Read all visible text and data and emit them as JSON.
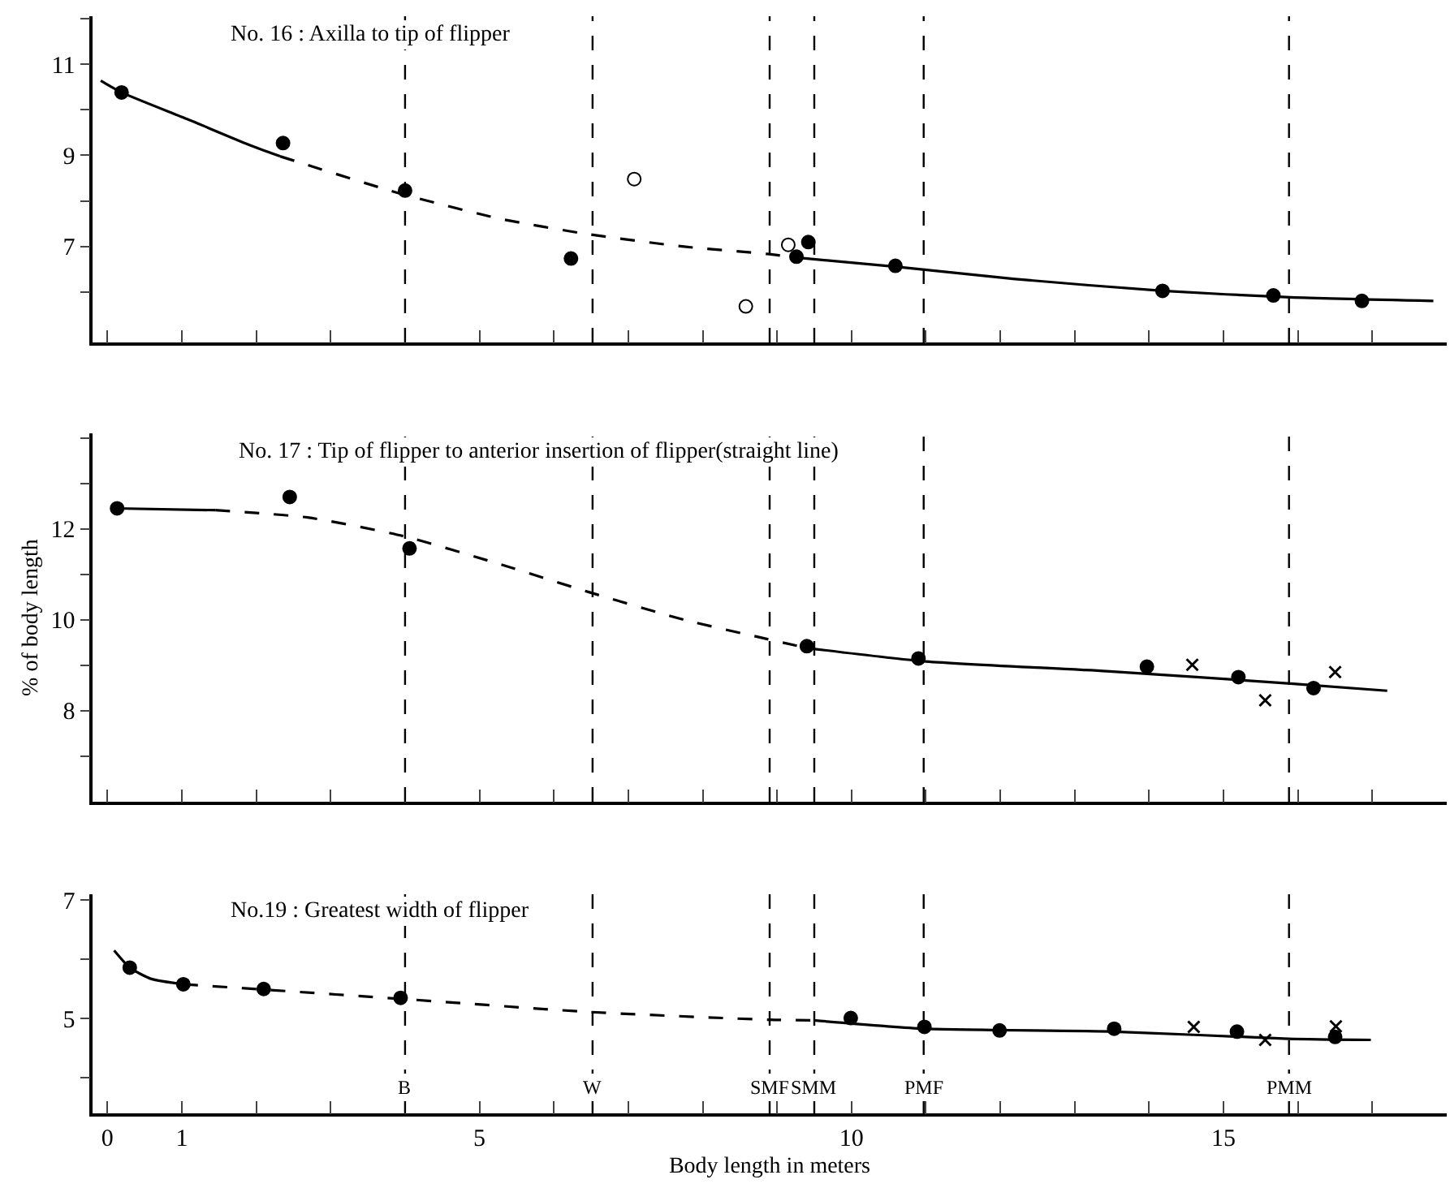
{
  "chart_data": [
    {
      "type": "scatter",
      "title": "No. 16 : Axilla to tip of flipper",
      "xlim": [
        -0.2,
        18
      ],
      "ylim": [
        4.9,
        12.05
      ],
      "tick_labels": "y",
      "xticks": [
        0,
        1,
        {
          "value": 2,
          "label": null
        },
        {
          "value": 3,
          "label": null
        },
        {
          "value": 4,
          "label": null
        },
        5,
        {
          "value": 6,
          "label": null
        },
        {
          "value": 7,
          "label": null
        },
        {
          "value": 8,
          "label": null
        },
        {
          "value": 9,
          "label": null
        },
        10,
        {
          "value": 11,
          "label": null
        },
        {
          "value": 12,
          "label": null
        },
        {
          "value": 13,
          "label": null
        },
        {
          "value": 14,
          "label": null
        },
        15,
        {
          "value": 16,
          "label": null
        },
        {
          "value": 17,
          "label": null
        },
        {
          "value": 18,
          "label": null
        }
      ],
      "yticks": [
        {
          "value": 6,
          "label": null
        },
        7,
        {
          "value": 8,
          "label": null
        },
        9,
        {
          "value": 10,
          "label": null
        },
        11,
        {
          "value": 12,
          "label": null
        }
      ],
      "series": [
        {
          "type": "line",
          "line_style": "solid",
          "marker": "none",
          "color": "#000000",
          "x": [
            -0.09,
            0.19,
            1.08,
            1.89,
            2.32
          ],
          "values": [
            10.64,
            10.38,
            9.79,
            9.24,
            8.98
          ]
        },
        {
          "type": "line",
          "line_style": "dashed",
          "marker": "none",
          "color": "#000000",
          "x": [
            2.32,
            3.92,
            5.28,
            6.47,
            7.75,
            8.86,
            9.26
          ],
          "values": [
            8.98,
            8.17,
            7.61,
            7.27,
            7.0,
            6.84,
            6.76
          ]
        },
        {
          "type": "line",
          "line_style": "solid",
          "marker": "none",
          "color": "#000000",
          "x": [
            9.26,
            10.59,
            12.2,
            14.18,
            15.9,
            17.82
          ],
          "values": [
            6.76,
            6.56,
            6.29,
            6.03,
            5.89,
            5.81
          ]
        },
        {
          "type": "scatter",
          "marker": "circle",
          "color": "#000000",
          "x": [
            0.19,
            2.36,
            4.0,
            6.23,
            9.42,
            9.26,
            10.59,
            14.18,
            15.67,
            16.86
          ],
          "values": [
            10.38,
            9.27,
            8.23,
            6.74,
            7.1,
            6.78,
            6.58,
            6.03,
            5.93,
            5.81
          ]
        },
        {
          "type": "scatter",
          "marker": "circle",
          "color": "#ffffff",
          "x": [
            7.08,
            8.58,
            9.15
          ],
          "values": [
            8.48,
            5.69,
            7.04
          ]
        }
      ],
      "ref_lines": [
        {
          "axis": "x",
          "value": 4.0,
          "line_style": "dashed",
          "color": "#000000"
        },
        {
          "axis": "x",
          "value": 6.52,
          "line_style": "dashed",
          "color": "#000000"
        },
        {
          "axis": "x",
          "value": 8.9,
          "line_style": "dashed",
          "color": "#000000"
        },
        {
          "axis": "x",
          "value": 9.5,
          "line_style": "dashed",
          "color": "#000000"
        },
        {
          "axis": "x",
          "value": 10.97,
          "line_style": "dashed",
          "color": "#000000"
        },
        {
          "axis": "x",
          "value": 15.88,
          "line_style": "dashed",
          "color": "#000000"
        }
      ]
    },
    {
      "type": "scatter",
      "title": "No. 17 : Tip of flipper to anterior insertion of flipper(straight line)",
      "ylabel": "% of body length",
      "xlim": [
        -0.2,
        18
      ],
      "ylim": [
        6,
        14.1
      ],
      "tick_labels": "y",
      "xticks": [
        0,
        1,
        {
          "value": 2,
          "label": null
        },
        {
          "value": 3,
          "label": null
        },
        {
          "value": 4,
          "label": null
        },
        5,
        {
          "value": 6,
          "label": null
        },
        {
          "value": 7,
          "label": null
        },
        {
          "value": 8,
          "label": null
        },
        {
          "value": 9,
          "label": null
        },
        10,
        {
          "value": 11,
          "label": null
        },
        {
          "value": 12,
          "label": null
        },
        {
          "value": 13,
          "label": null
        },
        {
          "value": 14,
          "label": null
        },
        15,
        {
          "value": 16,
          "label": null
        },
        {
          "value": 17,
          "label": null
        },
        {
          "value": 18,
          "label": null
        }
      ],
      "yticks": [
        {
          "value": 7,
          "label": null
        },
        8,
        {
          "value": 9,
          "label": null
        },
        10,
        {
          "value": 11,
          "label": null
        },
        12,
        {
          "value": 13,
          "label": null
        },
        {
          "value": 14,
          "label": null
        }
      ],
      "series": [
        {
          "type": "line",
          "line_style": "solid",
          "marker": "none",
          "color": "#000000",
          "x": [
            0.13,
            1.45
          ],
          "values": [
            12.45,
            12.41
          ]
        },
        {
          "type": "line",
          "line_style": "dashed",
          "marker": "none",
          "color": "#000000",
          "x": [
            1.45,
            2.69,
            3.98,
            5.28,
            6.47,
            7.75,
            8.86,
            9.4
          ],
          "values": [
            12.41,
            12.25,
            11.84,
            11.22,
            10.61,
            10.0,
            9.58,
            9.38
          ]
        },
        {
          "type": "line",
          "line_style": "solid",
          "marker": "none",
          "color": "#000000",
          "x": [
            9.4,
            10.96,
            13.43,
            15.9,
            17.2
          ],
          "values": [
            9.38,
            9.09,
            8.87,
            8.6,
            8.44
          ]
        },
        {
          "type": "scatter",
          "marker": "circle",
          "color": "#000000",
          "x": [
            0.13,
            2.45,
            4.06,
            9.4,
            10.9,
            13.97,
            15.2,
            16.21
          ],
          "values": [
            12.45,
            12.7,
            11.57,
            9.42,
            9.15,
            8.97,
            8.74,
            8.5
          ]
        },
        {
          "type": "scatter",
          "marker": "cross",
          "color": "#000000",
          "x": [
            14.58,
            15.56,
            16.5
          ],
          "values": [
            9.01,
            8.23,
            8.85
          ]
        }
      ],
      "ref_lines": [
        {
          "axis": "x",
          "value": 4.0,
          "line_style": "dashed",
          "color": "#000000"
        },
        {
          "axis": "x",
          "value": 6.52,
          "line_style": "dashed",
          "color": "#000000"
        },
        {
          "axis": "x",
          "value": 8.9,
          "line_style": "dashed",
          "color": "#000000"
        },
        {
          "axis": "x",
          "value": 9.5,
          "line_style": "dashed",
          "color": "#000000"
        },
        {
          "axis": "x",
          "value": 10.97,
          "line_style": "dashed",
          "color": "#000000"
        },
        {
          "axis": "x",
          "value": 15.88,
          "line_style": "dashed",
          "color": "#000000"
        }
      ]
    },
    {
      "type": "scatter",
      "title": "No.19 : Greatest width of flipper",
      "xlabel": "Body length in meters",
      "xlim": [
        -0.2,
        18
      ],
      "ylim": [
        3.4,
        7.1
      ],
      "xticks": [
        0,
        1,
        {
          "value": 2,
          "label": null
        },
        {
          "value": 3,
          "label": null
        },
        {
          "value": 4,
          "label": null
        },
        5,
        {
          "value": 6,
          "label": null
        },
        {
          "value": 7,
          "label": null
        },
        {
          "value": 8,
          "label": null
        },
        {
          "value": 9,
          "label": null
        },
        10,
        {
          "value": 11,
          "label": null
        },
        {
          "value": 12,
          "label": null
        },
        {
          "value": 13,
          "label": null
        },
        {
          "value": 14,
          "label": null
        },
        15,
        {
          "value": 16,
          "label": null
        },
        {
          "value": 17,
          "label": null
        },
        {
          "value": 18,
          "label": null
        }
      ],
      "yticks": [
        {
          "value": 4,
          "label": null
        },
        5,
        {
          "value": 6,
          "label": null
        },
        7
      ],
      "series": [
        {
          "type": "line",
          "line_style": "solid",
          "marker": "none",
          "color": "#000000",
          "x": [
            0.09,
            0.3,
            0.59,
            1.02
          ],
          "values": [
            6.15,
            5.86,
            5.67,
            5.58
          ]
        },
        {
          "type": "line",
          "line_style": "dashed",
          "marker": "none",
          "color": "#000000",
          "x": [
            1.02,
            2.1,
            3.98,
            6.5,
            8.91,
            9.5
          ],
          "values": [
            5.58,
            5.49,
            5.33,
            5.11,
            4.98,
            4.97
          ]
        },
        {
          "type": "line",
          "line_style": "solid",
          "marker": "none",
          "color": "#000000",
          "x": [
            9.5,
            10.98,
            13.53,
            15.87,
            16.98
          ],
          "values": [
            4.97,
            4.83,
            4.78,
            4.66,
            4.64
          ]
        },
        {
          "type": "scatter",
          "marker": "circle",
          "color": "#000000",
          "x": [
            0.3,
            1.02,
            2.1,
            3.94,
            9.99,
            10.98,
            11.99,
            13.53,
            15.18,
            16.5
          ],
          "values": [
            5.86,
            5.58,
            5.5,
            5.35,
            5.01,
            4.86,
            4.8,
            4.83,
            4.78,
            4.69
          ]
        },
        {
          "type": "scatter",
          "marker": "cross",
          "color": "#000000",
          "x": [
            14.6,
            15.56,
            16.51
          ],
          "values": [
            4.86,
            4.64,
            4.87
          ]
        }
      ],
      "ref_lines": [
        {
          "axis": "x",
          "value": 4.0,
          "label": "B",
          "line_style": "dashed",
          "color": "#000000"
        },
        {
          "axis": "x",
          "value": 6.52,
          "label": "W",
          "line_style": "dashed",
          "color": "#000000"
        },
        {
          "axis": "x",
          "value": 8.9,
          "label": "SMF",
          "line_style": "dashed",
          "color": "#000000"
        },
        {
          "axis": "x",
          "value": 9.5,
          "label": "SMM",
          "line_style": "dashed",
          "color": "#000000"
        },
        {
          "axis": "x",
          "value": 10.97,
          "label": "PMF",
          "line_style": "dashed",
          "color": "#000000"
        },
        {
          "axis": "x",
          "value": 15.88,
          "label": "PMM",
          "line_style": "dashed",
          "color": "#000000"
        }
      ]
    }
  ]
}
